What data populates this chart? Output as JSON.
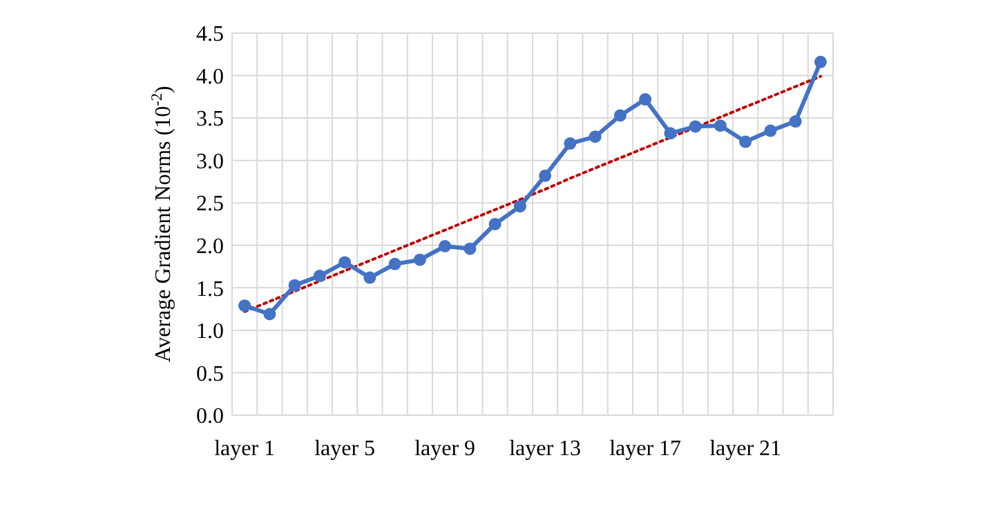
{
  "chart_data": {
    "type": "line",
    "ylabel": "Average Gradient Norms (10$^{-2}$)",
    "categories": [
      "layer 1",
      null,
      null,
      null,
      "layer 5",
      null,
      null,
      null,
      "layer 9",
      null,
      null,
      null,
      "layer 13",
      null,
      null,
      null,
      "layer 17",
      null,
      null,
      null,
      "layer 21",
      null,
      null,
      null
    ],
    "series": [
      {
        "color": "#4472c4",
        "marker": "circle",
        "line_style": "solid",
        "values": [
          1.29,
          1.19,
          1.53,
          1.64,
          1.8,
          1.62,
          1.78,
          1.83,
          1.99,
          1.96,
          2.25,
          2.46,
          2.82,
          3.2,
          3.28,
          3.53,
          3.72,
          3.32,
          3.4,
          3.41,
          3.22,
          3.35,
          3.46,
          4.16
        ]
      },
      {
        "type": "line",
        "color": "#c00000",
        "marker": "none",
        "line_style": "dotted",
        "values": [
          1.22,
          1.34,
          1.46,
          1.58,
          1.7,
          1.82,
          1.94,
          2.06,
          2.18,
          2.3,
          2.42,
          2.54,
          2.66,
          2.79,
          2.91,
          3.03,
          3.15,
          3.27,
          3.39,
          3.51,
          3.63,
          3.75,
          3.87,
          3.99
        ]
      }
    ],
    "ylim": [
      0,
      4.5
    ],
    "yticks": [
      {
        "value": 0,
        "label": "0.0"
      },
      0.5,
      {
        "value": 1,
        "label": "1.0"
      },
      1.5,
      {
        "value": 2,
        "label": "2.0"
      },
      2.5,
      {
        "value": 3,
        "label": "3.0"
      },
      3.5,
      {
        "value": 4,
        "label": "4.0"
      },
      4.5
    ],
    "grid": true
  }
}
